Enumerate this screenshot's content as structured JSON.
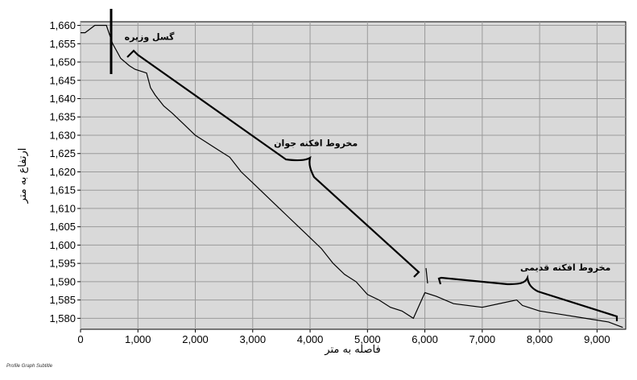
{
  "chart_data": {
    "type": "line",
    "title": "",
    "subtitle": "Profile Graph Subtitle",
    "xlabel": "فاصله به متر",
    "ylabel": "ارتفاع به متر",
    "xlim": [
      0,
      9500
    ],
    "ylim": [
      1577,
      1661
    ],
    "xticks": [
      0,
      1000,
      2000,
      3000,
      4000,
      5000,
      6000,
      7000,
      8000,
      9000
    ],
    "xtick_labels": [
      "0",
      "1,000",
      "2,000",
      "3,000",
      "4,000",
      "5,000",
      "6,000",
      "7,000",
      "8,000",
      "9,000"
    ],
    "yticks": [
      1580,
      1585,
      1590,
      1595,
      1600,
      1605,
      1610,
      1615,
      1620,
      1625,
      1630,
      1635,
      1640,
      1645,
      1650,
      1655,
      1660
    ],
    "ytick_labels": [
      "1,580",
      "1,585",
      "1,590",
      "1,595",
      "1,600",
      "1,605",
      "1,610",
      "1,615",
      "1,620",
      "1,625",
      "1,630",
      "1,635",
      "1,640",
      "1,645",
      "1,650",
      "1,655",
      "1,660"
    ],
    "grid": true,
    "plot_background": "#d9d9d9",
    "line_color": "#000000",
    "series": [
      {
        "values": [
          [
            0,
            1658
          ],
          [
            80,
            1658
          ],
          [
            250,
            1660
          ],
          [
            450,
            1660
          ],
          [
            560,
            1655
          ],
          [
            700,
            1651
          ],
          [
            850,
            1649
          ],
          [
            950,
            1648
          ],
          [
            1150,
            1647
          ],
          [
            1220,
            1643
          ],
          [
            1300,
            1641
          ],
          [
            1450,
            1638
          ],
          [
            1600,
            1636
          ],
          [
            1800,
            1633
          ],
          [
            2000,
            1630
          ],
          [
            2200,
            1628
          ],
          [
            2400,
            1626
          ],
          [
            2600,
            1624
          ],
          [
            2800,
            1620
          ],
          [
            3000,
            1617
          ],
          [
            3200,
            1614
          ],
          [
            3400,
            1611
          ],
          [
            3600,
            1608
          ],
          [
            3800,
            1605
          ],
          [
            4000,
            1602
          ],
          [
            4200,
            1599
          ],
          [
            4400,
            1595
          ],
          [
            4600,
            1592
          ],
          [
            4800,
            1590
          ],
          [
            5000,
            1586.5
          ],
          [
            5200,
            1585
          ],
          [
            5400,
            1583
          ],
          [
            5600,
            1582
          ],
          [
            5800,
            1580
          ],
          [
            6000,
            1587
          ],
          [
            6200,
            1586
          ],
          [
            6500,
            1584
          ],
          [
            7000,
            1583
          ],
          [
            7600,
            1585
          ],
          [
            7700,
            1583.5
          ],
          [
            8000,
            1582
          ],
          [
            8400,
            1581
          ],
          [
            8800,
            1580
          ],
          [
            9200,
            1579
          ],
          [
            9450,
            1577.5
          ]
        ]
      }
    ],
    "annotations": [
      {
        "text": "گسل وزیره",
        "x": 1200,
        "y": 1656
      },
      {
        "text": "مخروط افکنه جوان",
        "x": 4100,
        "y": 1627
      },
      {
        "text": "مخروط افکنه قدیمی",
        "x": 8450,
        "y": 1593
      }
    ]
  }
}
